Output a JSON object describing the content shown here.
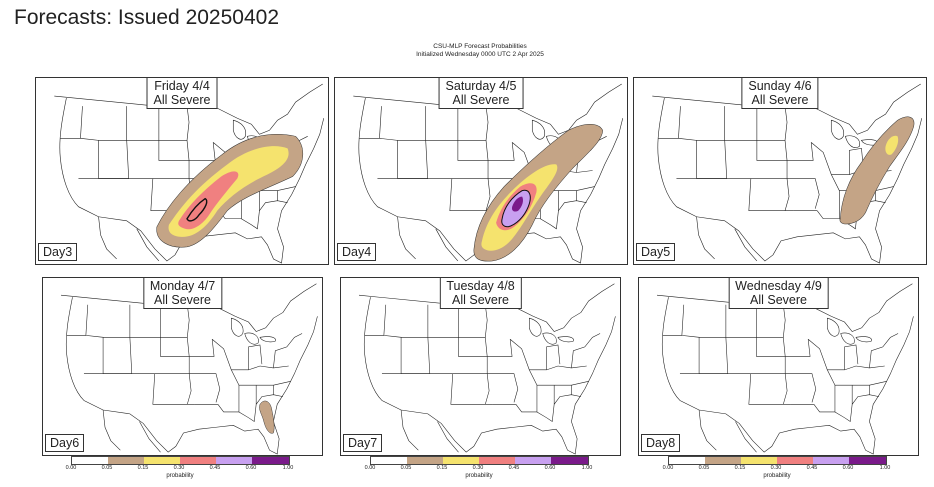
{
  "page": {
    "title": "Forecasts: Issued 20250402"
  },
  "figure": {
    "suptitle_line1": "CSU-MLP Forecast Probabilities",
    "suptitle_line2": "Initialized Wednesday 0000 UTC 2 Apr 2025"
  },
  "panels": [
    {
      "date": "Friday 4/4",
      "hazard": "All Severe",
      "day": "Day3",
      "max_probability": 0.45
    },
    {
      "date": "Saturday 4/5",
      "hazard": "All Severe",
      "day": "Day4",
      "max_probability": 0.6
    },
    {
      "date": "Sunday 4/6",
      "hazard": "All Severe",
      "day": "Day5",
      "max_probability": 0.15
    },
    {
      "date": "Monday 4/7",
      "hazard": "All Severe",
      "day": "Day6",
      "max_probability": 0.05
    },
    {
      "date": "Tuesday 4/8",
      "hazard": "All Severe",
      "day": "Day7",
      "max_probability": 0.0
    },
    {
      "date": "Wednesday 4/9",
      "hazard": "All Severe",
      "day": "Day8",
      "max_probability": 0.0
    }
  ],
  "colorbar": {
    "label": "probability",
    "ticks": [
      "0.00",
      "0.05",
      "0.15",
      "0.30",
      "0.45",
      "0.60",
      "1.00"
    ],
    "colors": [
      "#ffffff",
      "#c4a486",
      "#f5e36e",
      "#f08080",
      "#c8a0f0",
      "#7a1a8a"
    ]
  }
}
